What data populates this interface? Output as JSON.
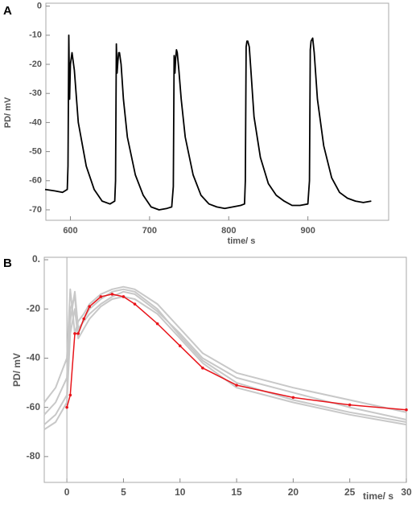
{
  "chart_data": [
    {
      "type": "line",
      "label": "A",
      "xlabel": "time/ s",
      "ylabel": "PD/ mV",
      "xlim": [
        569,
        1002
      ],
      "ylim": [
        -73.6,
        1
      ],
      "xticks": [
        600,
        700,
        800,
        900
      ],
      "yticks": [
        0,
        -10,
        -20,
        -30,
        -40,
        -50,
        -60,
        -70
      ],
      "x": [
        568,
        580,
        590,
        596,
        597,
        598,
        599,
        600,
        602,
        605,
        610,
        620,
        630,
        640,
        650,
        656,
        657,
        658,
        659,
        660,
        661,
        662,
        664,
        667,
        672,
        682,
        692,
        702,
        712,
        722,
        728,
        730,
        731,
        732,
        733,
        734,
        735,
        737,
        740,
        745,
        755,
        765,
        775,
        785,
        795,
        805,
        815,
        820,
        821,
        822,
        823,
        824,
        826,
        828,
        832,
        840,
        850,
        860,
        870,
        880,
        890,
        900,
        902,
        903,
        904,
        906,
        908,
        912,
        920,
        930,
        940,
        950,
        960,
        970,
        980
      ],
      "series": [
        {
          "color": "#000000",
          "markers": false,
          "values": [
            -63,
            -63.5,
            -64,
            -63,
            -55,
            -10,
            -32,
            -20,
            -16,
            -22,
            -40,
            -55,
            -63,
            -67,
            -68,
            -67,
            -60,
            -13,
            -23,
            -19,
            -16,
            -16,
            -20,
            -32,
            -45,
            -58,
            -65,
            -69,
            -70,
            -69.5,
            -69,
            -62,
            -17,
            -23,
            -18,
            -15,
            -16,
            -22,
            -32,
            -45,
            -58,
            -65,
            -68,
            -69,
            -69.5,
            -69,
            -68.5,
            -68,
            -60,
            -14,
            -12,
            -12,
            -14,
            -22,
            -38,
            -52,
            -61,
            -65,
            -67,
            -68.5,
            -68.5,
            -68,
            -60,
            -15,
            -12,
            -11,
            -16,
            -32,
            -48,
            -59,
            -64,
            -66,
            -67,
            -67.5,
            -67
          ]
        }
      ]
    },
    {
      "type": "line",
      "label": "B",
      "xlabel": "time/ s",
      "ylabel": "PD/ mV",
      "xlim": [
        -2,
        30
      ],
      "ylim": [
        -90.5,
        1
      ],
      "xticks": [
        0,
        5,
        10,
        15,
        20,
        25,
        30
      ],
      "yticks": [
        {
          "value": 0,
          "label": "0."
        },
        -20,
        -40,
        -60,
        -80
      ],
      "x": [
        -2,
        -1,
        0,
        0.3,
        0.7,
        1,
        1.5,
        2,
        3,
        4,
        5,
        6,
        8,
        10,
        12,
        15,
        20,
        25,
        30
      ],
      "series": [
        {
          "color": "#c8c8c8",
          "markers": false,
          "values": [
            -58,
            -52,
            -40,
            -12,
            -30,
            -25,
            -22,
            -18,
            -14,
            -12,
            -11,
            -12,
            -18,
            -28,
            -38,
            -46,
            -52,
            -57,
            -62
          ]
        },
        {
          "color": "#c8c8c8",
          "markers": false,
          "values": [
            -63,
            -58,
            -48,
            -20,
            -15,
            -30,
            -24,
            -20,
            -16,
            -13,
            -12,
            -13,
            -20,
            -31,
            -41,
            -50,
            -57,
            -62,
            -66
          ]
        },
        {
          "color": "#c8c8c8",
          "markers": false,
          "values": [
            -67,
            -63,
            -55,
            -25,
            -13,
            -28,
            -25,
            -22,
            -18,
            -15,
            -13,
            -14,
            -21,
            -30,
            -40,
            -48,
            -54,
            -60,
            -65
          ]
        },
        {
          "color": "#c8c8c8",
          "markers": false,
          "values": [
            -69,
            -66,
            -58,
            -30,
            -20,
            -32,
            -28,
            -24,
            -19,
            -16,
            -15,
            -16,
            -22,
            -32,
            -42,
            -52,
            -58,
            -63,
            -67
          ]
        },
        {
          "color": "#e8141a",
          "markers": true,
          "values": [
            null,
            null,
            -60,
            -55,
            -30,
            -30,
            -24,
            -19,
            -15,
            -14,
            -15,
            -18,
            -26,
            -35,
            -44,
            -51,
            -56,
            -59,
            -61
          ]
        }
      ]
    }
  ]
}
